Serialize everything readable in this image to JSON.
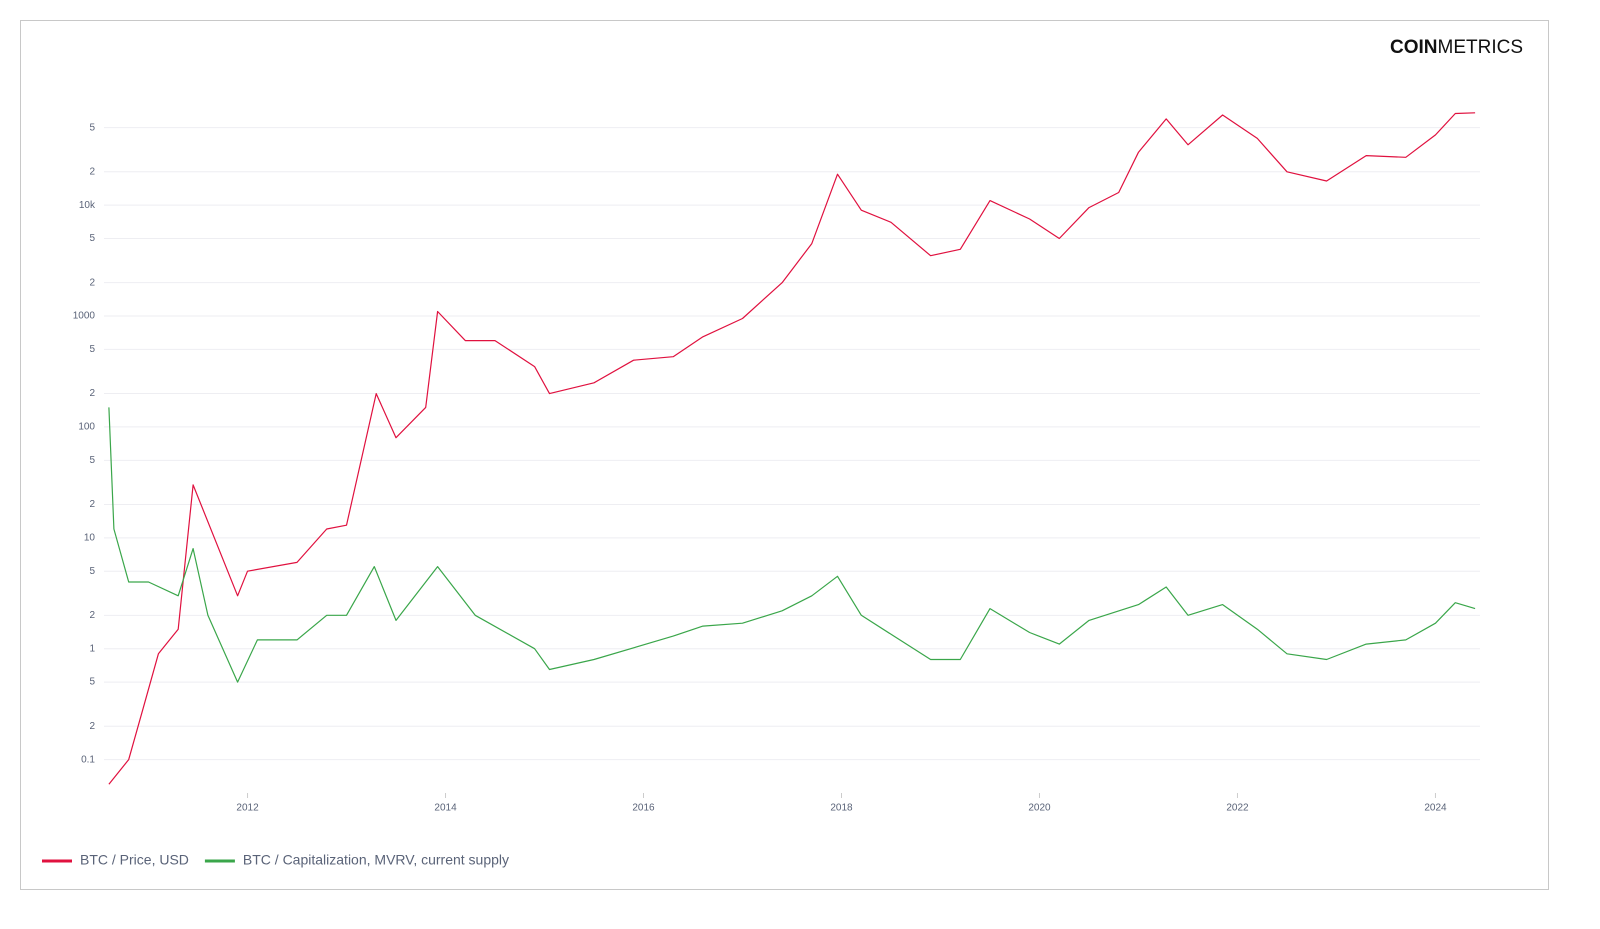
{
  "chart_data": {
    "type": "line",
    "logo_bold": "COIN",
    "logo_light": "METRICS",
    "log_y": true,
    "grid": true,
    "legend": "bottom-left",
    "xlim": [
      2010.55,
      2024.45
    ],
    "xticks": [
      2012,
      2014,
      2016,
      2018,
      2020,
      2022,
      2024
    ],
    "ylim": [
      0.05,
      80000
    ],
    "yticks": [
      0.1,
      {
        "value": 0.2,
        "label": "2"
      },
      {
        "value": 0.5,
        "label": "5"
      },
      1,
      2,
      5,
      10,
      {
        "value": 20,
        "label": "2"
      },
      {
        "value": 50,
        "label": "5"
      },
      100,
      {
        "value": 200,
        "label": "2"
      },
      {
        "value": 500,
        "label": "5"
      },
      1000,
      {
        "value": 2000,
        "label": "2"
      },
      {
        "value": 5000,
        "label": "5"
      },
      {
        "value": 10000,
        "label": "10k"
      },
      {
        "value": 20000,
        "label": "2"
      },
      {
        "value": 50000,
        "label": "5"
      }
    ],
    "series": [
      {
        "name": "BTC / Price, USD",
        "color": "#e0113f",
        "x": [
          2010.6,
          2010.8,
          2010.95,
          2011.1,
          2011.3,
          2011.45,
          2011.9,
          2012.0,
          2012.5,
          2012.8,
          2013.0,
          2013.3,
          2013.5,
          2013.8,
          2013.92,
          2014.2,
          2014.5,
          2014.9,
          2015.05,
          2015.5,
          2015.9,
          2016.3,
          2016.6,
          2017.0,
          2017.4,
          2017.7,
          2017.96,
          2018.2,
          2018.5,
          2018.9,
          2019.2,
          2019.5,
          2019.9,
          2020.2,
          2020.5,
          2020.8,
          2021.0,
          2021.28,
          2021.5,
          2021.85,
          2022.2,
          2022.5,
          2022.9,
          2023.3,
          2023.7,
          2024.0,
          2024.2,
          2024.4
        ],
        "values": [
          0.06,
          0.1,
          0.3,
          0.9,
          1.5,
          30,
          3,
          5,
          6,
          12,
          13,
          200,
          80,
          150,
          1100,
          600,
          600,
          350,
          200,
          250,
          400,
          430,
          650,
          950,
          2000,
          4500,
          19000,
          9000,
          7000,
          3500,
          4000,
          11000,
          7500,
          5000,
          9500,
          13000,
          30000,
          60000,
          35000,
          65000,
          40000,
          20000,
          16500,
          28000,
          27000,
          43000,
          67000,
          68000
        ]
      },
      {
        "name": "BTC / Capitalization, MVRV, current supply",
        "color": "#3aa64a",
        "x": [
          2010.6,
          2010.65,
          2010.8,
          2011.0,
          2011.3,
          2011.45,
          2011.6,
          2011.9,
          2012.1,
          2012.5,
          2012.8,
          2013.0,
          2013.28,
          2013.5,
          2013.92,
          2014.3,
          2014.9,
          2015.05,
          2015.5,
          2016.3,
          2016.6,
          2017.0,
          2017.4,
          2017.7,
          2017.96,
          2018.2,
          2018.9,
          2019.2,
          2019.5,
          2019.9,
          2020.2,
          2020.5,
          2021.0,
          2021.28,
          2021.5,
          2021.85,
          2022.2,
          2022.5,
          2022.9,
          2023.3,
          2023.7,
          2024.0,
          2024.2,
          2024.4
        ],
        "values": [
          150,
          12,
          4,
          4,
          3,
          8,
          2,
          0.5,
          1.2,
          1.2,
          2,
          2,
          5.5,
          1.8,
          5.5,
          2,
          1,
          0.65,
          0.8,
          1.3,
          1.6,
          1.7,
          2.2,
          3,
          4.5,
          2,
          0.8,
          0.8,
          2.3,
          1.4,
          1.1,
          1.8,
          2.5,
          3.6,
          2,
          2.5,
          1.5,
          0.9,
          0.8,
          1.1,
          1.2,
          1.7,
          2.6,
          2.3
        ]
      }
    ]
  }
}
